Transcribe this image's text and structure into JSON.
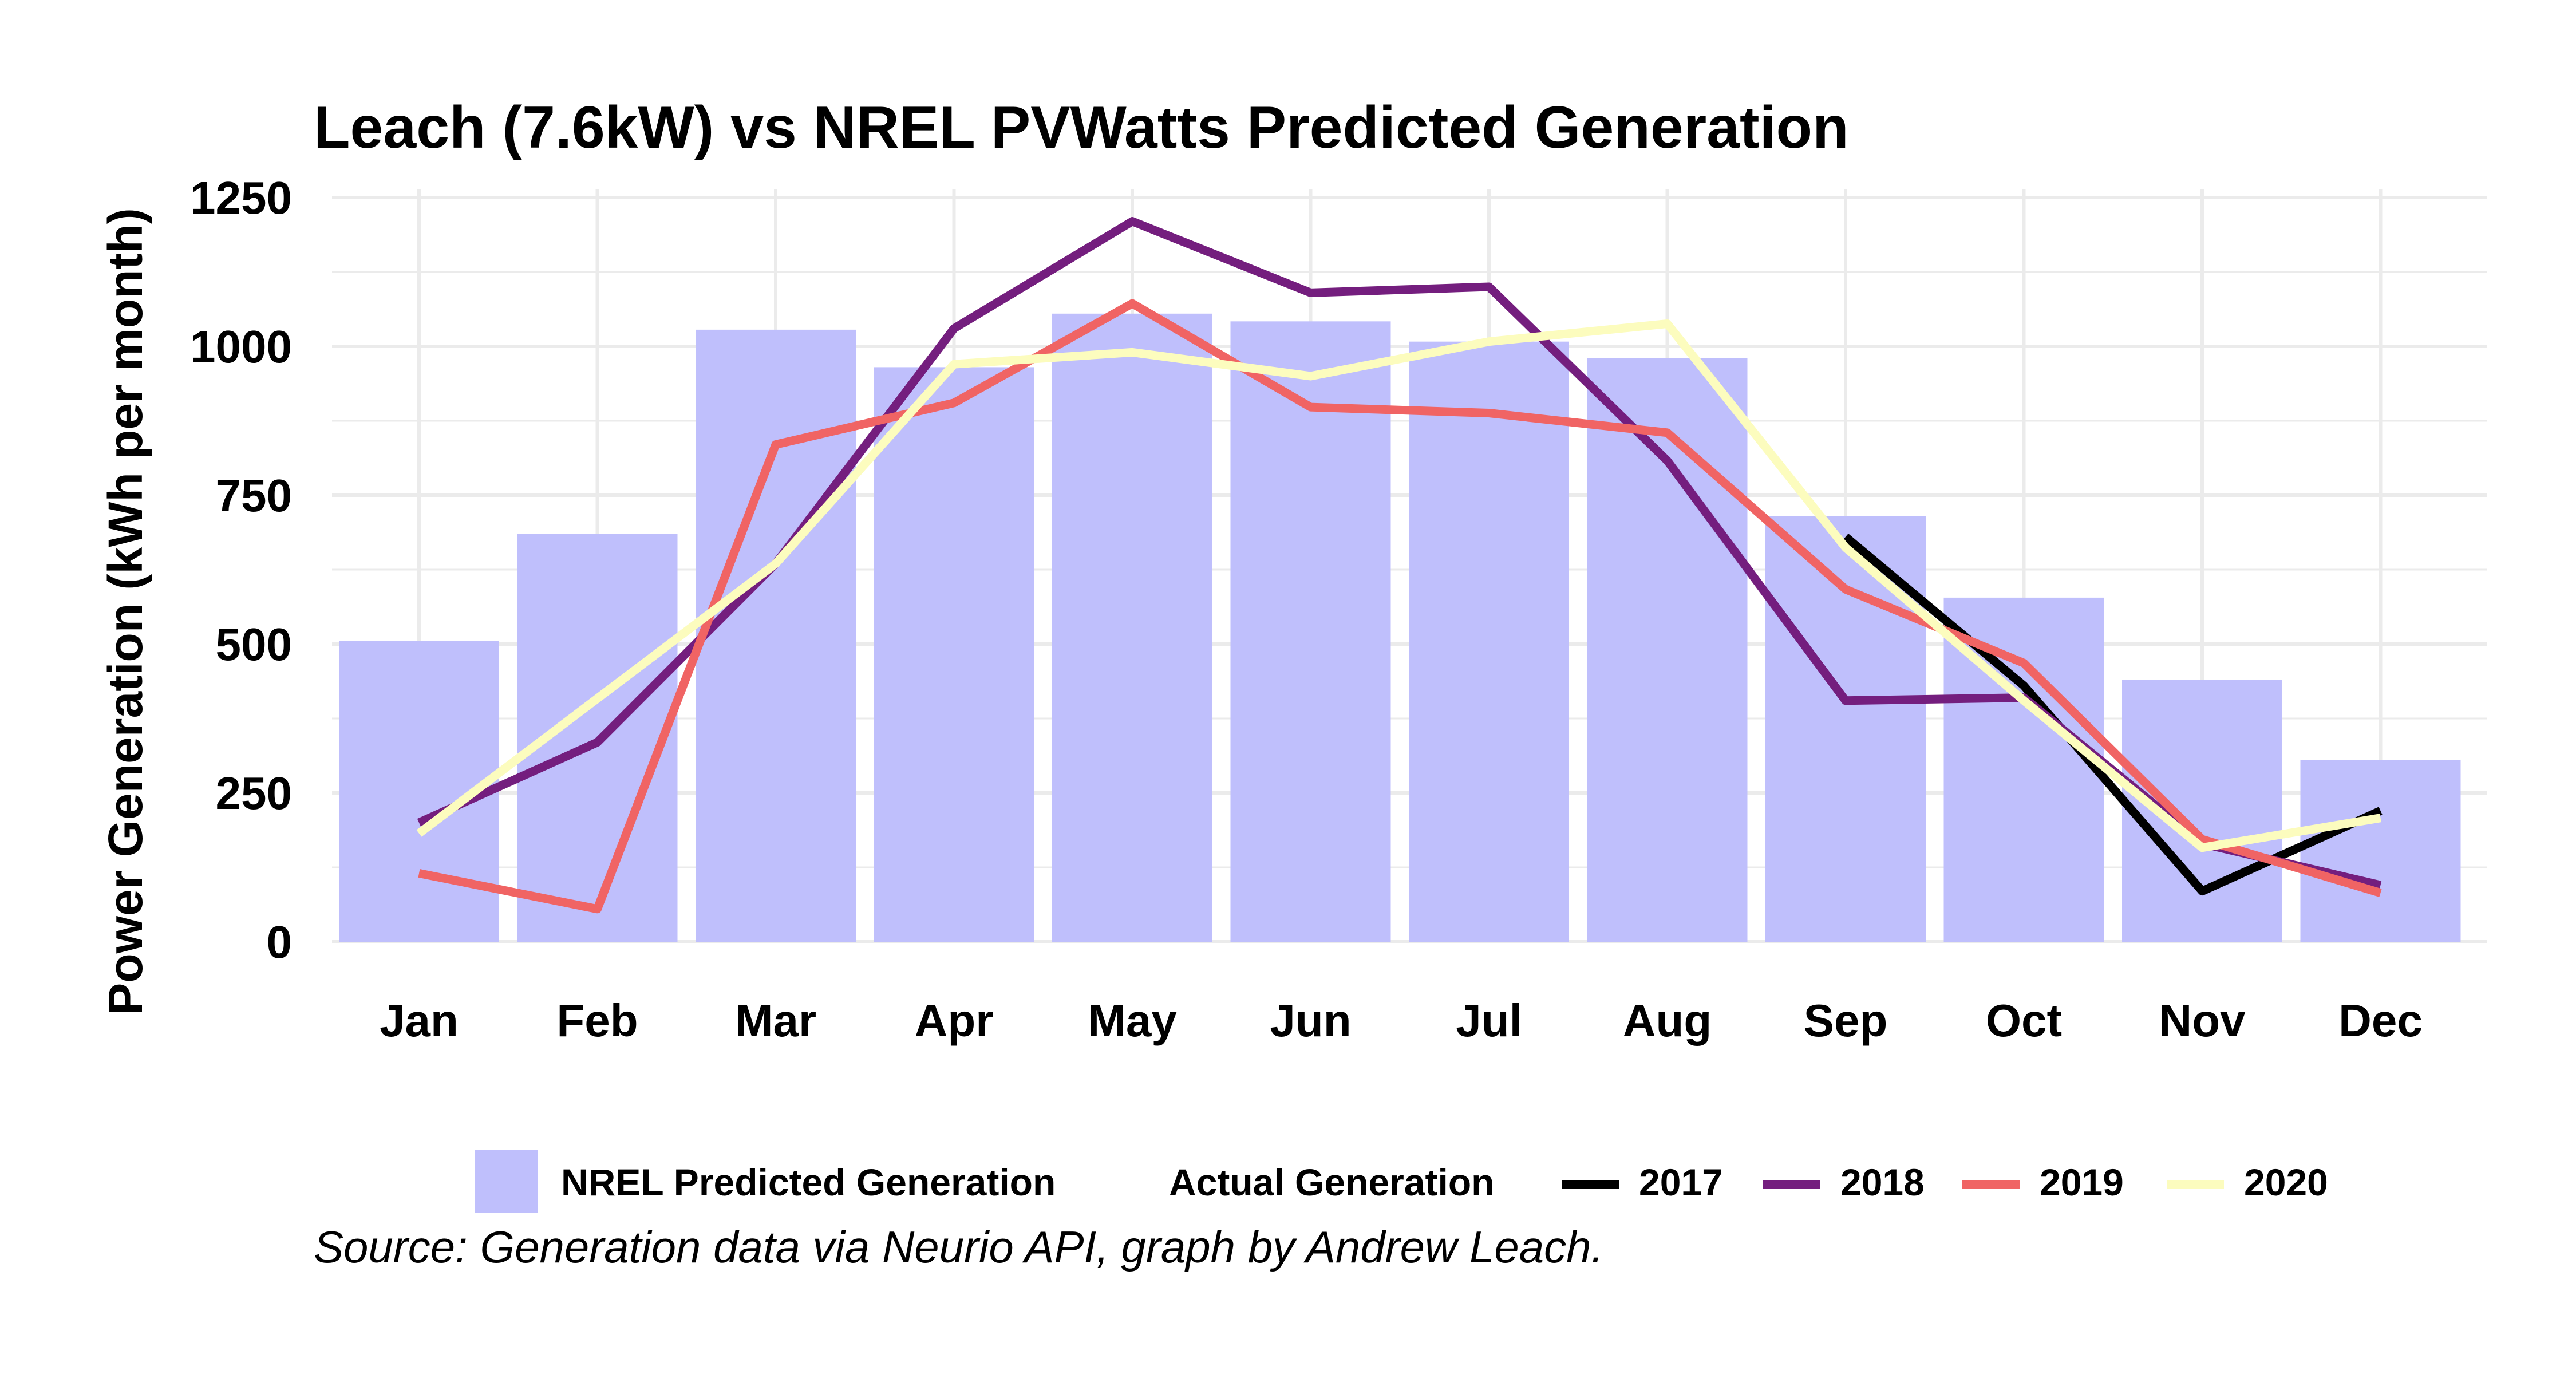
{
  "chart_data": {
    "type": "bar",
    "title": "Leach (7.6kW) vs NREL PVWatts Predicted Generation",
    "xlabel": "",
    "ylabel": "Power Generation (kWh per month)",
    "caption": "Source: Generation data via Neurio API, graph by Andrew Leach.",
    "ylim": [
      0,
      1300
    ],
    "yticks": [
      0,
      250,
      500,
      750,
      1000,
      1250
    ],
    "ytick_labels": [
      "0",
      "250",
      "500",
      "750",
      "1000",
      "1250"
    ],
    "grid": true,
    "legend_position": "bottom",
    "categories": [
      "Jan",
      "Feb",
      "Mar",
      "Apr",
      "May",
      "Jun",
      "Jul",
      "Aug",
      "Sep",
      "Oct",
      "Nov",
      "Dec"
    ],
    "bars": {
      "name": "NREL Predicted Generation",
      "color": "#bfbffc",
      "values": [
        505,
        685,
        1028,
        965,
        1055,
        1042,
        1008,
        980,
        715,
        578,
        440,
        305
      ]
    },
    "lines_title": "Actual Generation",
    "series": [
      {
        "name": "2017",
        "color": "#000000",
        "values": [
          null,
          null,
          null,
          null,
          null,
          null,
          null,
          null,
          680,
          430,
          85,
          220
        ]
      },
      {
        "name": "2018",
        "color": "#741e7e",
        "values": [
          200,
          335,
          635,
          1030,
          1210,
          1090,
          1100,
          808,
          405,
          410,
          165,
          95
        ]
      },
      {
        "name": "2019",
        "color": "#f06464",
        "values": [
          115,
          55,
          835,
          905,
          1072,
          898,
          888,
          855,
          592,
          468,
          172,
          82
        ]
      },
      {
        "name": "2020",
        "color": "#fcfcbe",
        "values": [
          182,
          null,
          635,
          970,
          990,
          950,
          1008,
          1038,
          662,
          405,
          158,
          208
        ]
      }
    ]
  }
}
